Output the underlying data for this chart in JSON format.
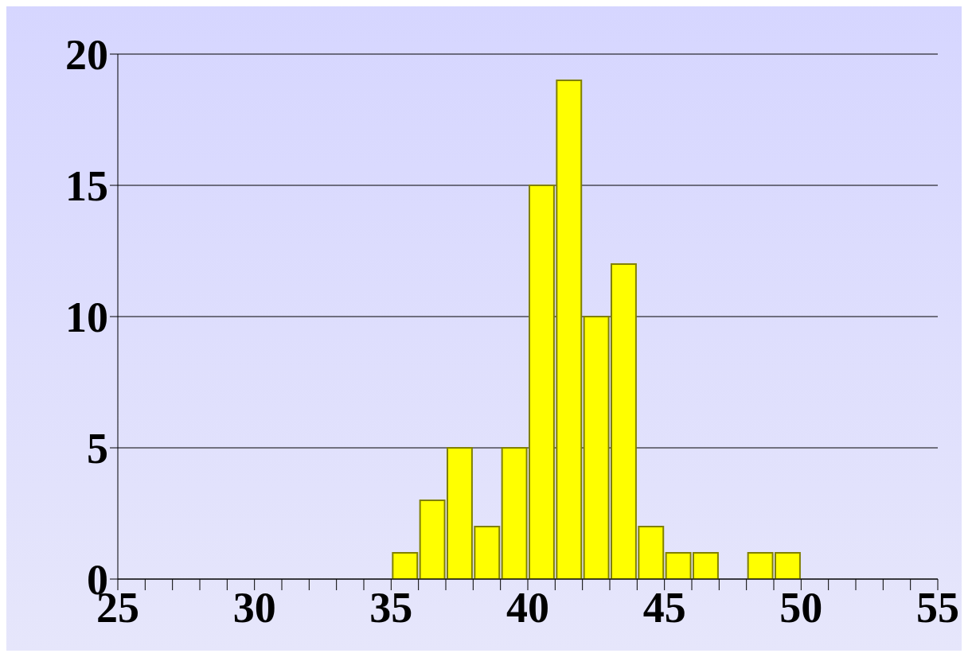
{
  "chart_data": {
    "type": "histogram",
    "bins": [
      35,
      36,
      37,
      38,
      39,
      40,
      41,
      42,
      43,
      44,
      45,
      46,
      47,
      48,
      49,
      50
    ],
    "values": [
      1,
      3,
      5,
      2,
      5,
      15,
      19,
      10,
      12,
      2,
      1,
      1,
      0,
      1,
      1
    ],
    "color": "#ffff00",
    "xlim": [
      25,
      55
    ],
    "xticks": [
      25,
      {
        "value": 26,
        "label": null
      },
      {
        "value": 27,
        "label": null
      },
      {
        "value": 28,
        "label": null
      },
      {
        "value": 29,
        "label": null
      },
      30,
      {
        "value": 31,
        "label": null
      },
      {
        "value": 32,
        "label": null
      },
      {
        "value": 33,
        "label": null
      },
      {
        "value": 34,
        "label": null
      },
      35,
      {
        "value": 36,
        "label": null
      },
      {
        "value": 37,
        "label": null
      },
      {
        "value": 38,
        "label": null
      },
      {
        "value": 39,
        "label": null
      },
      40,
      {
        "value": 41,
        "label": null
      },
      {
        "value": 42,
        "label": null
      },
      {
        "value": 43,
        "label": null
      },
      {
        "value": 44,
        "label": null
      },
      45,
      {
        "value": 46,
        "label": null
      },
      {
        "value": 47,
        "label": null
      },
      {
        "value": 48,
        "label": null
      },
      {
        "value": 49,
        "label": null
      },
      50,
      {
        "value": 51,
        "label": null
      },
      {
        "value": 52,
        "label": null
      },
      {
        "value": 53,
        "label": null
      },
      {
        "value": 54,
        "label": null
      },
      55
    ],
    "ylim": [
      0,
      20
    ],
    "yticks": [
      0,
      5,
      10,
      15,
      20
    ],
    "grid": "y"
  }
}
